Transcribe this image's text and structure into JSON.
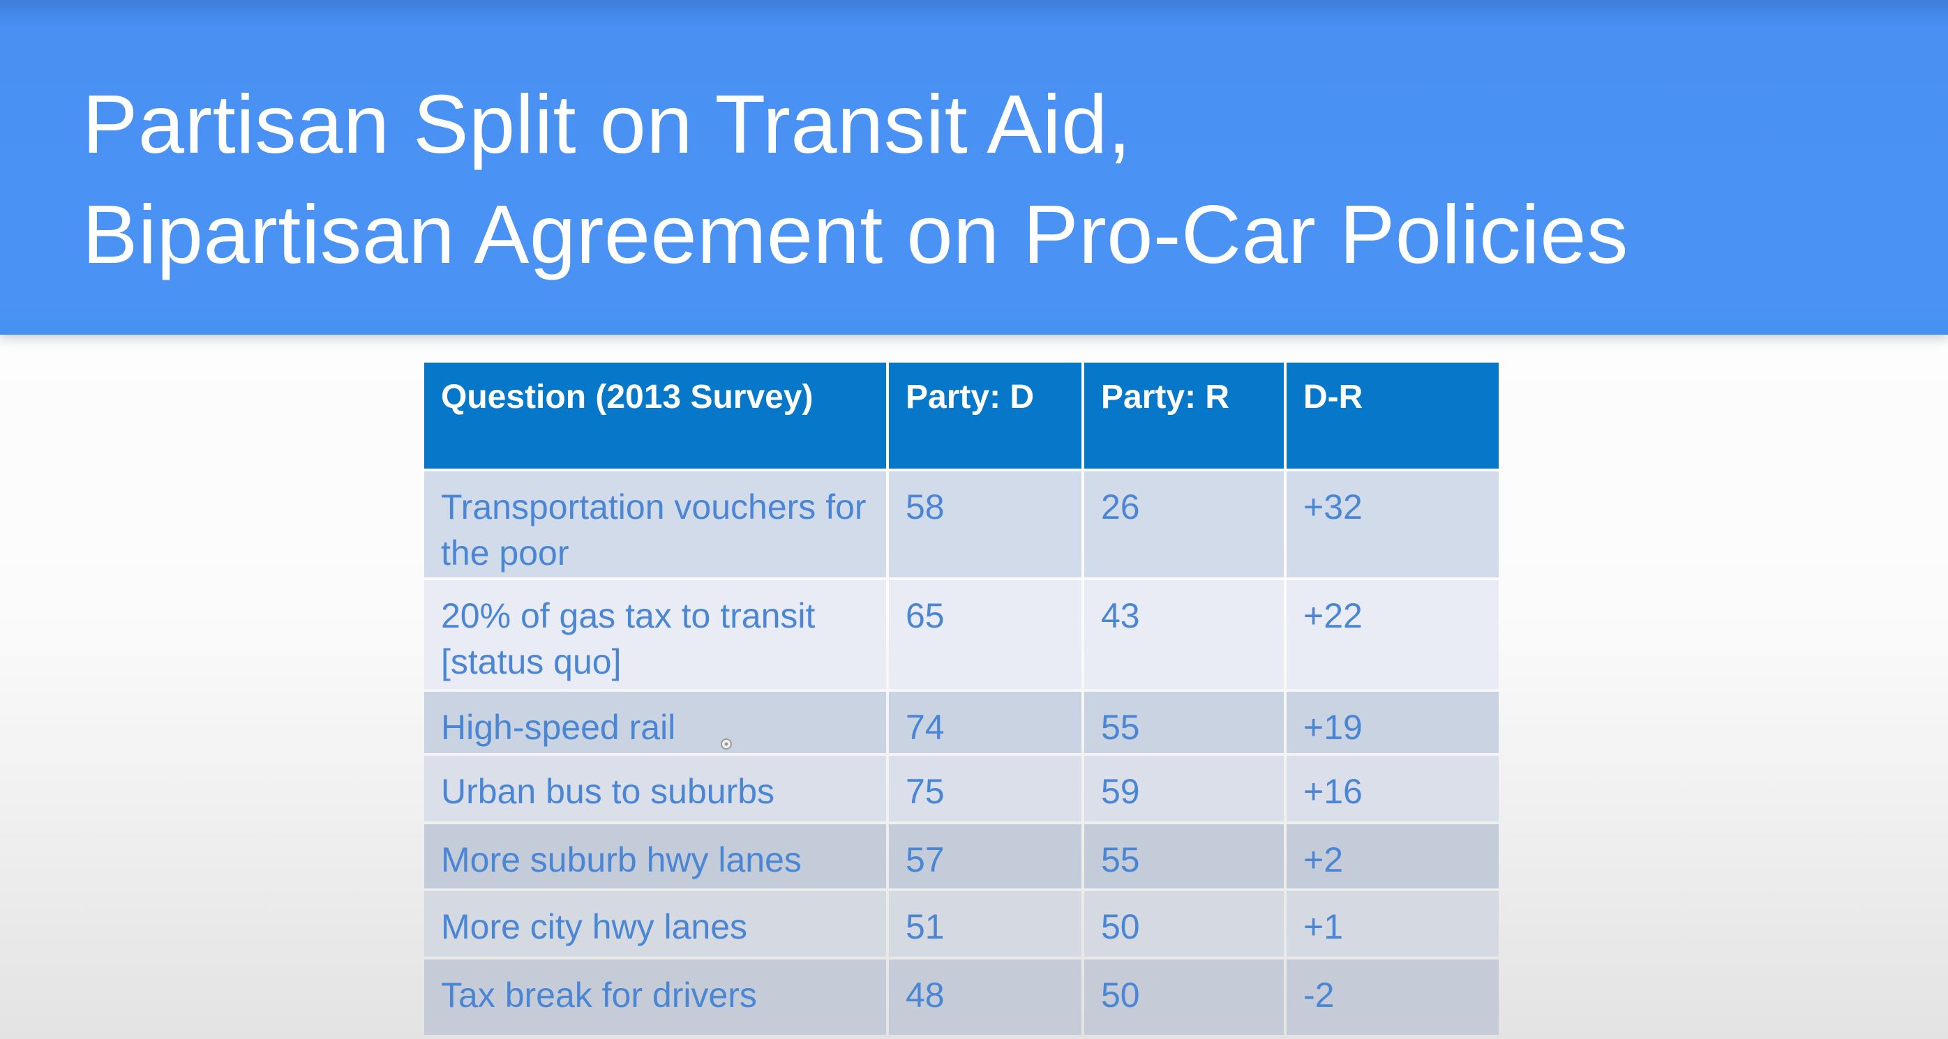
{
  "slide": {
    "title_line1": "Partisan Split on Transit Aid,",
    "title_line2": "Bipartisan Agreement on Pro-Car Policies"
  },
  "table": {
    "headers": [
      "Question (2013 Survey)",
      "Party: D",
      "Party: R",
      "D-R"
    ],
    "rows": [
      {
        "question": "Transportation vouchers for the poor",
        "d": "58",
        "r": "26",
        "diff": "+32"
      },
      {
        "question": "20% of gas tax to transit [status quo]",
        "d": "65",
        "r": "43",
        "diff": "+22"
      },
      {
        "question": "High-speed rail",
        "d": "74",
        "r": "55",
        "diff": "+19"
      },
      {
        "question": "Urban bus to suburbs",
        "d": "75",
        "r": "59",
        "diff": "+16"
      },
      {
        "question": "More suburb hwy lanes",
        "d": "57",
        "r": "55",
        "diff": "+2"
      },
      {
        "question": "More city hwy lanes",
        "d": "51",
        "r": "50",
        "diff": "+1"
      },
      {
        "question": "Tax break for drivers",
        "d": "48",
        "r": "50",
        "diff": "-2"
      }
    ]
  },
  "colors": {
    "banner": "#4a93f5",
    "header_fill": "#0778c9",
    "body_text": "#4a86d4",
    "title_text": "#ffffff"
  },
  "icons": {
    "cursor": "mouse-cursor-icon"
  }
}
